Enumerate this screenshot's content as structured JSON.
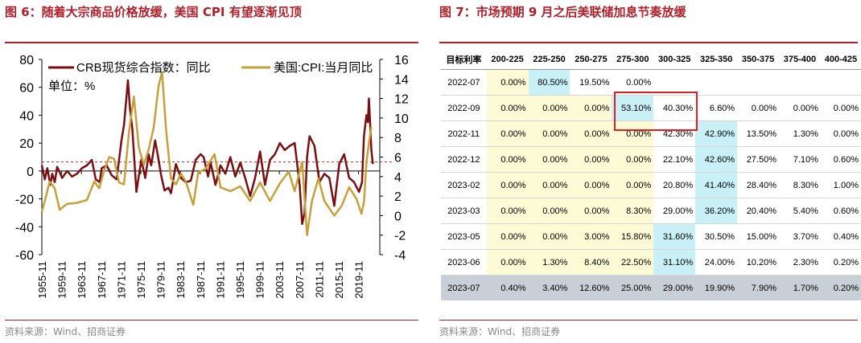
{
  "fig6": {
    "title": "图 6：随着大宗商品价格放缓，美国 CPI 有望逐渐见顶",
    "source": "资料来源：Wind、招商证券",
    "chart_data": {
      "type": "line",
      "legend": [
        "CRB现货综合指数：同比",
        "美国:CPI:当月同比"
      ],
      "unit_label": "单位：%",
      "x_ticks": [
        "1955-11",
        "1959-11",
        "1963-11",
        "1967-11",
        "1971-11",
        "1975-11",
        "1979-11",
        "1983-11",
        "1987-11",
        "1991-11",
        "1995-11",
        "1999-11",
        "2003-11",
        "2007-11",
        "2011-11",
        "2015-11",
        "2019-11"
      ],
      "left_axis": {
        "ticks": [
          "80",
          "60",
          "40",
          "20",
          "0",
          "-20",
          "-40",
          "-60"
        ],
        "ylim": [
          -60,
          80
        ]
      },
      "right_axis": {
        "ticks": [
          "16",
          "14",
          "12",
          "10",
          "8",
          "6",
          "4",
          "2",
          "0",
          "-2",
          "-4"
        ],
        "ylim": [
          -4,
          16
        ]
      },
      "reference_line_right": 5.5,
      "series": [
        {
          "name": "CRB现货综合指数：同比",
          "axis": "left",
          "color": "#7a0f12",
          "x": [
            1955.9,
            1956.5,
            1957,
            1957.6,
            1958,
            1958.5,
            1959,
            1960,
            1961,
            1962,
            1963,
            1964,
            1965,
            1966,
            1966.8,
            1967.6,
            1968,
            1969,
            1970,
            1971,
            1972,
            1972.5,
            1973.3,
            1973.7,
            1974.2,
            1975,
            1976,
            1976.8,
            1977.5,
            1978,
            1978.8,
            1979.5,
            1980,
            1980.7,
            1981.5,
            1982,
            1983,
            1984,
            1985,
            1986,
            1987,
            1988,
            1988.6,
            1989.5,
            1990,
            1991,
            1992,
            1993,
            1994,
            1995,
            1996,
            1997,
            1998,
            1999,
            2000,
            2001,
            2002,
            2003,
            2004,
            2005,
            2006,
            2007,
            2008,
            2008.5,
            2009,
            2009.5,
            2010,
            2010.7,
            2011,
            2012,
            2013,
            2014,
            2015,
            2016,
            2017,
            2018,
            2019,
            2020,
            2020.6,
            2021,
            2021.5,
            2021.8,
            2022,
            2022.5,
            2022.8
          ],
          "values": [
            4,
            -6,
            2,
            -10,
            -2,
            -8,
            3,
            -5,
            0,
            -4,
            -2,
            2,
            4,
            8,
            -6,
            -8,
            2,
            4,
            -3,
            -6,
            22,
            33,
            65,
            45,
            30,
            -15,
            8,
            -5,
            12,
            4,
            22,
            8,
            -3,
            -14,
            -12,
            -16,
            5,
            -5,
            -8,
            -7,
            8,
            12,
            10,
            -4,
            6,
            -10,
            4,
            -2,
            10,
            -4,
            6,
            -5,
            -18,
            -5,
            14,
            -10,
            8,
            12,
            20,
            15,
            18,
            20,
            -10,
            -38,
            -30,
            10,
            25,
            20,
            18,
            -8,
            -2,
            -5,
            -25,
            5,
            12,
            -5,
            -8,
            -15,
            -8,
            25,
            40,
            35,
            52,
            15,
            5
          ]
        },
        {
          "name": "美国:CPI:当月同比",
          "axis": "right",
          "color": "#c8a03a",
          "x": [
            1955.9,
            1956.5,
            1957.5,
            1958.5,
            1959.5,
            1961,
            1963,
            1965,
            1966.5,
            1967.5,
            1968.5,
            1969.5,
            1970.5,
            1971.5,
            1972.5,
            1973.5,
            1974.5,
            1975.5,
            1976.5,
            1977.5,
            1978.5,
            1979.5,
            1980.2,
            1981,
            1982,
            1983,
            1984,
            1985,
            1986.5,
            1987.5,
            1989,
            1990.8,
            1992,
            1994,
            1996,
            1998,
            2000,
            2002,
            2004,
            2005.8,
            2007,
            2008.5,
            2009.5,
            2010.5,
            2011.8,
            2013,
            2015,
            2016.5,
            2018,
            2019.5,
            2020.5,
            2021,
            2021.5,
            2022,
            2022.5
          ],
          "values": [
            0.4,
            1.5,
            3.5,
            2.8,
            0.6,
            1.2,
            1.3,
            1.6,
            3.5,
            2.8,
            4.6,
            6.0,
            5.8,
            3.4,
            3.2,
            8.5,
            12.2,
            7.0,
            5.2,
            6.8,
            9.0,
            13.3,
            14.7,
            8.9,
            3.8,
            3.2,
            4.3,
            3.5,
            1.1,
            4.4,
            4.8,
            6.3,
            2.9,
            2.5,
            3.0,
            1.5,
            3.4,
            1.5,
            3.3,
            4.5,
            2.5,
            5.5,
            -2.0,
            1.5,
            3.8,
            1.5,
            0.0,
            1.0,
            2.9,
            1.7,
            0.2,
            1.4,
            5.4,
            7.5,
            9.1
          ]
        }
      ]
    }
  },
  "fig7": {
    "title": "图 7：市场预期 9 月之后美联储加息节奏放缓",
    "source": "资料来源：Wind、招商证券",
    "chart_data": {
      "type": "table",
      "corner": "目标利率",
      "columns": [
        "200-225",
        "225-250",
        "250-275",
        "275-300",
        "300-325",
        "325-350",
        "350-375",
        "375-400",
        "400-425"
      ],
      "rows": [
        {
          "label": "2022-07",
          "cells": [
            "0.00%",
            "80.50%",
            "19.50%",
            "0.00%",
            "",
            "",
            "",
            "",
            ""
          ]
        },
        {
          "label": "2022-09",
          "cells": [
            "0.00%",
            "0.00%",
            "0.00%",
            "53.10%",
            "40.30%",
            "6.60%",
            "0.00%",
            "0.00%",
            "0.00%"
          ]
        },
        {
          "label": "2022-11",
          "cells": [
            "0.00%",
            "0.00%",
            "0.00%",
            "0.00%",
            "42.30%",
            "42.90%",
            "13.50%",
            "1.30%",
            "0.00%"
          ]
        },
        {
          "label": "2022-12",
          "cells": [
            "0.00%",
            "0.00%",
            "0.00%",
            "0.00%",
            "22.10%",
            "42.60%",
            "27.50%",
            "7.10%",
            "0.60%"
          ]
        },
        {
          "label": "2023-02",
          "cells": [
            "0.00%",
            "0.00%",
            "0.00%",
            "0.00%",
            "20.80%",
            "41.40%",
            "28.40%",
            "8.30%",
            "1.00%"
          ]
        },
        {
          "label": "2023-03",
          "cells": [
            "0.00%",
            "0.00%",
            "0.00%",
            "8.30%",
            "29.00%",
            "36.20%",
            "20.40%",
            "5.40%",
            "0.60%"
          ]
        },
        {
          "label": "2023-05",
          "cells": [
            "0.00%",
            "0.00%",
            "3.00%",
            "15.80%",
            "31.60%",
            "30.50%",
            "15.00%",
            "3.70%",
            "0.40%"
          ]
        },
        {
          "label": "2023-06",
          "cells": [
            "0.00%",
            "1.30%",
            "8.40%",
            "22.50%",
            "31.10%",
            "24.00%",
            "10.20%",
            "2.30%",
            "0.20%"
          ]
        },
        {
          "label": "2023-07",
          "cells": [
            "0.40%",
            "3.40%",
            "12.60%",
            "25.00%",
            "29.00%",
            "19.90%",
            "7.90%",
            "1.70%",
            "0.20%"
          ]
        }
      ],
      "highlight_max": [
        1,
        3,
        5,
        5,
        5,
        5,
        4,
        4,
        4
      ],
      "yellow_band_cols": [
        0,
        3
      ]
    }
  }
}
